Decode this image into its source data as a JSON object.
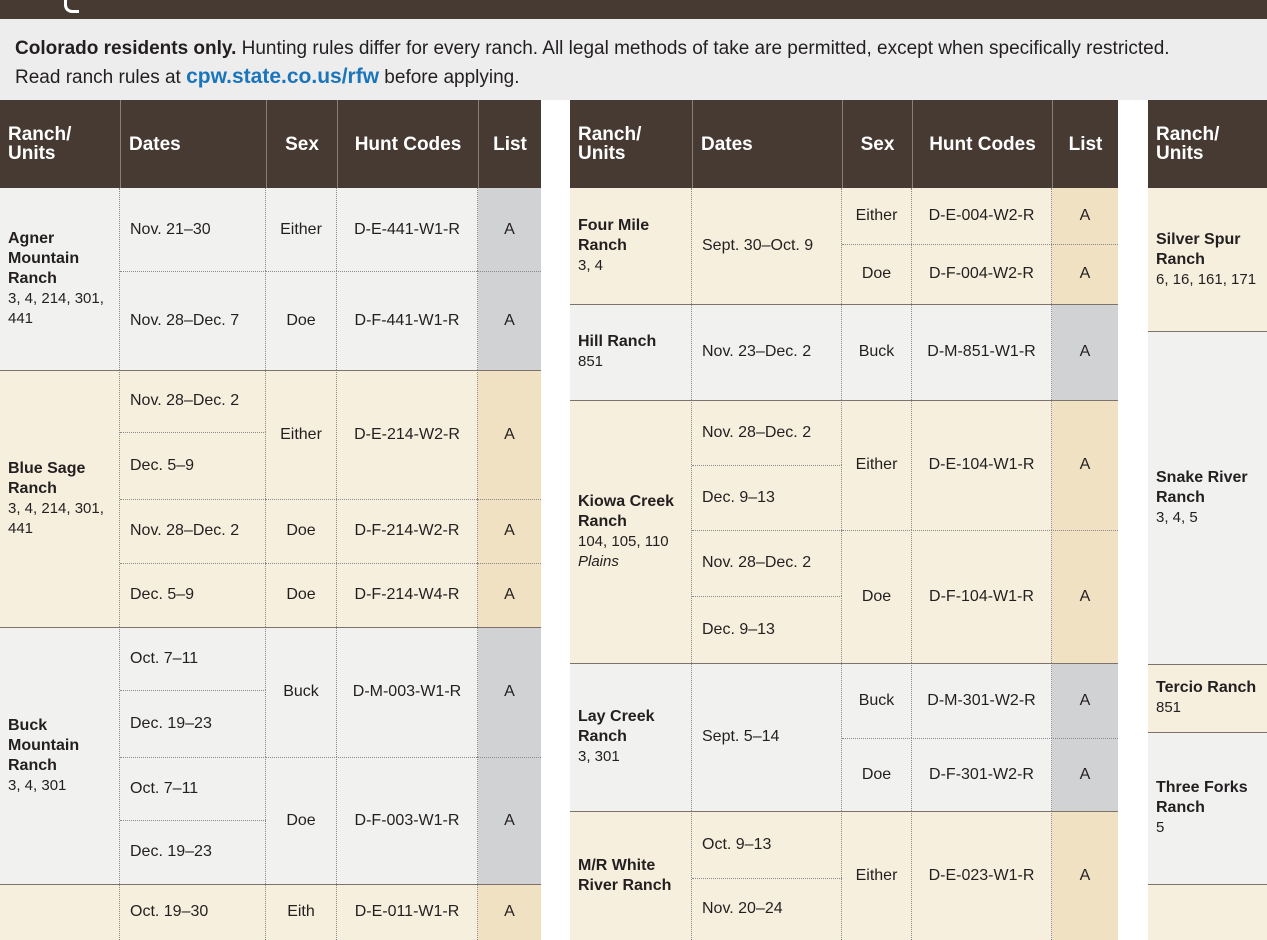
{
  "intro": {
    "lead": "Colorado residents only.",
    "text1": " Hunting rules differ for every ranch. All legal methods of take are permitted, except when specifically restricted.",
    "text2": "Read ranch rules at ",
    "url": "cpw.state.co.us/rfw",
    "text3": " before applying."
  },
  "headers": {
    "ranch": "Ranch/\nUnits",
    "dates": "Dates",
    "sex": "Sex",
    "hunt_codes": "Hunt Codes",
    "list": "List"
  },
  "colors": {
    "header_bg": "#463a33",
    "cream": "#f6efdd",
    "cream_dark": "#efe1c2",
    "grey": "#f1f1f0",
    "grey_dark": "#d1d2d3",
    "link": "#1b75bb"
  },
  "tables": [
    {
      "ranches": [
        {
          "name": "Agner Mountain Ranch",
          "units": "3, 4, 214, 301, 441",
          "tone": "grey",
          "rows": [
            {
              "dates": "Nov. 21–30",
              "sex": "Either",
              "code": "D-E-441-W1-R",
              "list": "A"
            },
            {
              "dates": "Nov. 28–Dec. 7",
              "sex": "Doe",
              "code": "D-F-441-W1-R",
              "list": "A"
            }
          ]
        },
        {
          "name": "Blue Sage Ranch",
          "units": "3, 4, 214, 301, 441",
          "tone": "cream",
          "rows": [
            {
              "dates": "Nov. 28–Dec. 2",
              "sex": "Either",
              "code": "D-E-214-W2-R",
              "list": "A"
            },
            {
              "dates": "Dec. 5–9",
              "sex": "",
              "code": "",
              "list": ""
            },
            {
              "dates": "Nov. 28–Dec. 2",
              "sex": "Doe",
              "code": "D-F-214-W2-R",
              "list": "A"
            },
            {
              "dates": "Dec. 5–9",
              "sex": "Doe",
              "code": "D-F-214-W4-R",
              "list": "A"
            }
          ]
        },
        {
          "name": "Buck Mountain Ranch",
          "units": "3, 4, 301",
          "tone": "grey",
          "rows": [
            {
              "dates": "Oct. 7–11",
              "sex": "Buck",
              "code": "D-M-003-W1-R",
              "list": "A"
            },
            {
              "dates": "Dec. 19–23",
              "sex": "",
              "code": "",
              "list": ""
            },
            {
              "dates": "Oct. 7–11",
              "sex": "Doe",
              "code": "D-F-003-W1-R",
              "list": "A"
            },
            {
              "dates": "Dec. 19–23",
              "sex": "",
              "code": "",
              "list": ""
            }
          ]
        },
        {
          "name": "",
          "units": "",
          "tone": "cream",
          "rows": [
            {
              "dates": "Oct. 19–30",
              "sex": "Eith",
              "code": "D-E-011-W1-R",
              "list": "A"
            }
          ]
        }
      ]
    },
    {
      "ranches": [
        {
          "name": "Four Mile Ranch",
          "units": "3, 4",
          "tone": "cream",
          "rows": [
            {
              "dates": "Sept. 30–Oct. 9",
              "sex": "Either",
              "code": "D-E-004-W2-R",
              "list": "A"
            },
            {
              "dates": "",
              "sex": "Doe",
              "code": "D-F-004-W2-R",
              "list": "A"
            }
          ]
        },
        {
          "name": "Hill Ranch",
          "units": "851",
          "tone": "grey",
          "rows": [
            {
              "dates": "Nov. 23–Dec. 2",
              "sex": "Buck",
              "code": "D-M-851-W1-R",
              "list": "A"
            }
          ]
        },
        {
          "name": "Kiowa Creek Ranch",
          "units": "104, 105, 110",
          "extra": "Plains",
          "tone": "cream",
          "rows": [
            {
              "dates": "Nov. 28–Dec. 2",
              "sex": "Either",
              "code": "D-E-104-W1-R",
              "list": "A"
            },
            {
              "dates": "Dec. 9–13",
              "sex": "",
              "code": "",
              "list": ""
            },
            {
              "dates": "Nov. 28–Dec. 2",
              "sex": "Doe",
              "code": "D-F-104-W1-R",
              "list": "A"
            },
            {
              "dates": "Dec. 9–13",
              "sex": "",
              "code": "",
              "list": ""
            }
          ]
        },
        {
          "name": "Lay Creek Ranch",
          "units": "3, 301",
          "tone": "grey",
          "rows": [
            {
              "dates": "Sept. 5–14",
              "sex": "Buck",
              "code": "D-M-301-W2-R",
              "list": "A"
            },
            {
              "dates": "",
              "sex": "Doe",
              "code": "D-F-301-W2-R",
              "list": "A"
            }
          ]
        },
        {
          "name": "M/R White River Ranch",
          "units": "",
          "tone": "cream",
          "rows": [
            {
              "dates": "Oct. 9–13",
              "sex": "Either",
              "code": "D-E-023-W1-R",
              "list": "A"
            },
            {
              "dates": "Nov. 20–24",
              "sex": "",
              "code": "",
              "list": ""
            }
          ]
        }
      ]
    },
    {
      "ranches": [
        {
          "name": "Silver Spur Ranch",
          "units": "6, 16, 161, 171",
          "tone": "cream"
        },
        {
          "name": "Snake River Ranch",
          "units": "3, 4, 5",
          "tone": "grey"
        },
        {
          "name": "Tercio Ranch",
          "units": "851",
          "tone": "cream"
        },
        {
          "name": "Three Forks Ranch",
          "units": "5",
          "tone": "grey"
        },
        {
          "name": "",
          "units": "",
          "tone": "cream"
        }
      ]
    }
  ]
}
